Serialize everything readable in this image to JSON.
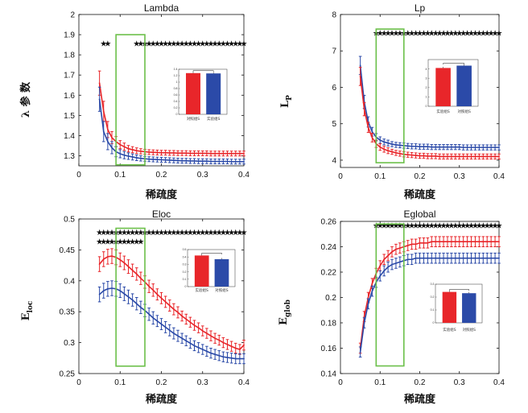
{
  "colors": {
    "group_a": "#e8262a",
    "group_b": "#2b4aa8",
    "highlight_box": "#6cc04a",
    "star_black": "#111111",
    "star_purple": "#9b59d0"
  },
  "chart_data": [
    {
      "type": "line",
      "title": "Lambda",
      "xlabel": "稀疏度",
      "ylabel": "λ 参 数",
      "xlim": [
        0,
        0.4
      ],
      "ylim": [
        1.25,
        2
      ],
      "xticks": [
        "0",
        "0.1",
        "0.2",
        "0.3",
        "0.4"
      ],
      "yticks": [
        "1.3",
        "1.4",
        "1.5",
        "1.6",
        "1.7",
        "1.8",
        "1.9",
        "2"
      ],
      "grid": false,
      "x": [
        0.05,
        0.06,
        0.07,
        0.08,
        0.09,
        0.1,
        0.11,
        0.12,
        0.13,
        0.14,
        0.15,
        0.16,
        0.17,
        0.18,
        0.19,
        0.2,
        0.21,
        0.22,
        0.23,
        0.24,
        0.25,
        0.26,
        0.27,
        0.28,
        0.29,
        0.3,
        0.31,
        0.32,
        0.33,
        0.34,
        0.35,
        0.36,
        0.37,
        0.38,
        0.39,
        0.4
      ],
      "series": [
        {
          "color": "red",
          "values": [
            1.66,
            1.52,
            1.43,
            1.39,
            1.37,
            1.355,
            1.345,
            1.335,
            1.33,
            1.325,
            1.322,
            1.32,
            1.318,
            1.317,
            1.316,
            1.315,
            1.315,
            1.314,
            1.314,
            1.313,
            1.313,
            1.313,
            1.312,
            1.312,
            1.312,
            1.312,
            1.312,
            1.311,
            1.311,
            1.311,
            1.311,
            1.311,
            1.311,
            1.311,
            1.311,
            1.311
          ]
        },
        {
          "color": "blue",
          "values": [
            1.58,
            1.42,
            1.37,
            1.34,
            1.32,
            1.31,
            1.303,
            1.298,
            1.294,
            1.29,
            1.287,
            1.285,
            1.283,
            1.282,
            1.281,
            1.28,
            1.279,
            1.278,
            1.277,
            1.276,
            1.275,
            1.275,
            1.274,
            1.274,
            1.273,
            1.273,
            1.273,
            1.272,
            1.272,
            1.272,
            1.272,
            1.272,
            1.271,
            1.271,
            1.271,
            1.271
          ]
        }
      ],
      "error": [
        0.06,
        0.05,
        0.04,
        0.03,
        0.025,
        0.02,
        0.018,
        0.016,
        0.015,
        0.014,
        0.013,
        0.012,
        0.012,
        0.012,
        0.012,
        0.012,
        0.012,
        0.012,
        0.012,
        0.012,
        0.012,
        0.012,
        0.012,
        0.012,
        0.012,
        0.012,
        0.012,
        0.012,
        0.012,
        0.012,
        0.012,
        0.012,
        0.012,
        0.012,
        0.012,
        0.012
      ],
      "significance": [
        {
          "y": 1.855,
          "color": "black",
          "x": [
            0.06,
            0.07,
            0.14,
            0.15,
            0.16,
            0.17,
            0.18,
            0.19,
            0.2,
            0.21,
            0.22,
            0.23,
            0.24,
            0.25,
            0.26,
            0.27,
            0.28,
            0.29,
            0.3,
            0.31,
            0.32,
            0.33,
            0.34,
            0.35,
            0.36,
            0.37,
            0.38,
            0.39,
            0.4
          ]
        }
      ],
      "highlight": {
        "x": [
          0.09,
          0.16
        ],
        "y": [
          1.255,
          1.9
        ]
      },
      "inset": {
        "labels": [
          "对照组S",
          "实验组S"
        ],
        "colors": [
          "red",
          "blue"
        ],
        "values": [
          1.28,
          1.27
        ],
        "ylim": [
          0,
          1.4
        ],
        "yticks": [
          "0",
          "0.2",
          "0.4",
          "0.6",
          "0.8",
          "1",
          "1.2",
          "1.4"
        ]
      }
    },
    {
      "type": "line",
      "title": "Lp",
      "xlabel": "稀疏度",
      "ylabel": "L",
      "ylabel_sub": "P",
      "xlim": [
        0,
        0.4
      ],
      "ylim": [
        3.8,
        8
      ],
      "xticks": [
        "0",
        "0.1",
        "0.2",
        "0.3",
        "0.4"
      ],
      "yticks": [
        "4",
        "5",
        "6",
        "7",
        "8"
      ],
      "grid": false,
      "x": [
        0.05,
        0.06,
        0.07,
        0.08,
        0.09,
        0.1,
        0.11,
        0.12,
        0.13,
        0.14,
        0.15,
        0.16,
        0.17,
        0.18,
        0.19,
        0.2,
        0.21,
        0.22,
        0.23,
        0.24,
        0.25,
        0.26,
        0.27,
        0.28,
        0.29,
        0.3,
        0.31,
        0.32,
        0.33,
        0.34,
        0.35,
        0.36,
        0.37,
        0.38,
        0.39,
        0.4
      ],
      "series": [
        {
          "color": "blue",
          "values": [
            6.6,
            5.6,
            5.05,
            4.78,
            4.63,
            4.55,
            4.5,
            4.47,
            4.44,
            4.42,
            4.41,
            4.4,
            4.39,
            4.38,
            4.38,
            4.37,
            4.37,
            4.37,
            4.36,
            4.36,
            4.36,
            4.36,
            4.36,
            4.36,
            4.36,
            4.36,
            4.35,
            4.35,
            4.35,
            4.35,
            4.35,
            4.35,
            4.35,
            4.35,
            4.35,
            4.35
          ]
        },
        {
          "color": "red",
          "values": [
            6.3,
            5.4,
            4.9,
            4.62,
            4.45,
            4.36,
            4.3,
            4.26,
            4.23,
            4.2,
            4.18,
            4.16,
            4.15,
            4.14,
            4.13,
            4.12,
            4.12,
            4.11,
            4.11,
            4.11,
            4.1,
            4.1,
            4.1,
            4.1,
            4.1,
            4.1,
            4.1,
            4.1,
            4.1,
            4.1,
            4.1,
            4.1,
            4.1,
            4.1,
            4.1,
            4.1
          ]
        }
      ],
      "error": [
        0.25,
        0.18,
        0.14,
        0.12,
        0.1,
        0.09,
        0.08,
        0.08,
        0.07,
        0.07,
        0.07,
        0.07,
        0.07,
        0.07,
        0.07,
        0.07,
        0.07,
        0.07,
        0.07,
        0.07,
        0.07,
        0.07,
        0.07,
        0.07,
        0.07,
        0.07,
        0.07,
        0.07,
        0.07,
        0.07,
        0.07,
        0.07,
        0.07,
        0.07,
        0.07,
        0.07
      ],
      "significance": [
        {
          "y": 7.48,
          "color": "black",
          "x": [
            0.09,
            0.1,
            0.11,
            0.12,
            0.13,
            0.14,
            0.15,
            0.16,
            0.17,
            0.18,
            0.19,
            0.2,
            0.21,
            0.22,
            0.23,
            0.24,
            0.25,
            0.26,
            0.27,
            0.28,
            0.29,
            0.3,
            0.31,
            0.32,
            0.33,
            0.34,
            0.35,
            0.36,
            0.37,
            0.38,
            0.39,
            0.4
          ]
        }
      ],
      "highlight": {
        "x": [
          0.09,
          0.16
        ],
        "y": [
          3.93,
          7.6
        ]
      },
      "inset": {
        "labels": [
          "实验组S",
          "对照组S"
        ],
        "colors": [
          "red",
          "blue"
        ],
        "values": [
          4.1,
          4.35
        ],
        "ylim": [
          0,
          5
        ],
        "yticks": [
          "0",
          "1",
          "2",
          "3",
          "4"
        ]
      }
    },
    {
      "type": "line",
      "title": "Eloc",
      "xlabel": "稀疏度",
      "ylabel": "E",
      "ylabel_sub": "loc",
      "xlim": [
        0,
        0.4
      ],
      "ylim": [
        0.25,
        0.5
      ],
      "xticks": [
        "0",
        "0.1",
        "0.2",
        "0.3",
        "0.4"
      ],
      "yticks": [
        "0.25",
        "0.3",
        "0.35",
        "0.4",
        "0.45",
        "0.5"
      ],
      "grid": false,
      "x": [
        0.05,
        0.06,
        0.07,
        0.08,
        0.09,
        0.1,
        0.11,
        0.12,
        0.13,
        0.14,
        0.15,
        0.16,
        0.17,
        0.18,
        0.19,
        0.2,
        0.21,
        0.22,
        0.23,
        0.24,
        0.25,
        0.26,
        0.27,
        0.28,
        0.29,
        0.3,
        0.31,
        0.32,
        0.33,
        0.34,
        0.35,
        0.36,
        0.37,
        0.38,
        0.39,
        0.4
      ],
      "series": [
        {
          "color": "red",
          "values": [
            0.427,
            0.435,
            0.439,
            0.44,
            0.438,
            0.434,
            0.429,
            0.423,
            0.417,
            0.411,
            0.404,
            0.398,
            0.391,
            0.385,
            0.378,
            0.372,
            0.366,
            0.36,
            0.354,
            0.349,
            0.343,
            0.338,
            0.333,
            0.328,
            0.324,
            0.319,
            0.315,
            0.311,
            0.307,
            0.304,
            0.3,
            0.297,
            0.294,
            0.291,
            0.289,
            0.296
          ]
        },
        {
          "color": "blue",
          "values": [
            0.378,
            0.384,
            0.387,
            0.388,
            0.387,
            0.384,
            0.379,
            0.374,
            0.369,
            0.363,
            0.357,
            0.352,
            0.346,
            0.34,
            0.335,
            0.33,
            0.325,
            0.32,
            0.315,
            0.311,
            0.307,
            0.303,
            0.299,
            0.295,
            0.292,
            0.289,
            0.286,
            0.283,
            0.281,
            0.279,
            0.277,
            0.276,
            0.275,
            0.274,
            0.274,
            0.274
          ]
        }
      ],
      "error": [
        0.012,
        0.012,
        0.012,
        0.012,
        0.012,
        0.011,
        0.011,
        0.011,
        0.01,
        0.01,
        0.01,
        0.01,
        0.01,
        0.01,
        0.009,
        0.009,
        0.009,
        0.009,
        0.009,
        0.009,
        0.008,
        0.008,
        0.008,
        0.008,
        0.008,
        0.008,
        0.008,
        0.008,
        0.008,
        0.008,
        0.008,
        0.008,
        0.008,
        0.008,
        0.008,
        0.008
      ],
      "significance": [
        {
          "y": 0.478,
          "color": "black",
          "x": [
            0.05,
            0.06,
            0.07,
            0.08,
            0.09,
            0.1,
            0.11,
            0.12,
            0.13,
            0.14,
            0.15,
            0.16,
            0.17,
            0.18,
            0.19,
            0.2,
            0.21,
            0.22,
            0.23,
            0.24,
            0.25,
            0.26,
            0.27,
            0.28,
            0.29,
            0.3,
            0.31,
            0.32,
            0.33,
            0.34,
            0.35,
            0.36,
            0.37,
            0.38,
            0.39,
            0.4
          ]
        },
        {
          "y": 0.463,
          "color": "purple",
          "x": [
            0.05,
            0.06,
            0.07,
            0.08,
            0.09,
            0.1,
            0.11,
            0.12,
            0.13,
            0.14,
            0.15
          ]
        }
      ],
      "highlight": {
        "x": [
          0.09,
          0.16
        ],
        "y": [
          0.262,
          0.485
        ]
      },
      "inset": {
        "labels": [
          "实验组S",
          "对照组S"
        ],
        "colors": [
          "red",
          "blue"
        ],
        "values": [
          0.42,
          0.37
        ],
        "ylim": [
          0,
          0.5
        ],
        "yticks": [
          "0",
          "0.1",
          "0.2",
          "0.3",
          "0.4",
          "0.5"
        ]
      }
    },
    {
      "type": "line",
      "title": "Eglobal",
      "xlabel": "稀疏度",
      "ylabel": "E",
      "ylabel_sub": "glob",
      "xlim": [
        0,
        0.4
      ],
      "ylim": [
        0.14,
        0.26
      ],
      "xticks": [
        "0",
        "0.1",
        "0.2",
        "0.3",
        "0.4"
      ],
      "yticks": [
        "0.14",
        "0.16",
        "0.18",
        "0.2",
        "0.22",
        "0.24",
        "0.26"
      ],
      "grid": false,
      "x": [
        0.05,
        0.06,
        0.07,
        0.08,
        0.09,
        0.1,
        0.11,
        0.12,
        0.13,
        0.14,
        0.15,
        0.16,
        0.17,
        0.18,
        0.19,
        0.2,
        0.21,
        0.22,
        0.23,
        0.24,
        0.25,
        0.26,
        0.27,
        0.28,
        0.29,
        0.3,
        0.31,
        0.32,
        0.33,
        0.34,
        0.35,
        0.36,
        0.37,
        0.38,
        0.39,
        0.4
      ],
      "series": [
        {
          "color": "red",
          "values": [
            0.16,
            0.185,
            0.2,
            0.211,
            0.219,
            0.225,
            0.23,
            0.233,
            0.236,
            0.238,
            0.239,
            0.24,
            0.241,
            0.242,
            0.242,
            0.243,
            0.243,
            0.243,
            0.244,
            0.244,
            0.244,
            0.244,
            0.244,
            0.244,
            0.244,
            0.244,
            0.244,
            0.244,
            0.244,
            0.244,
            0.244,
            0.244,
            0.244,
            0.244,
            0.244,
            0.244
          ]
        },
        {
          "color": "blue",
          "values": [
            0.157,
            0.18,
            0.195,
            0.205,
            0.212,
            0.217,
            0.221,
            0.224,
            0.226,
            0.227,
            0.228,
            0.229,
            0.23,
            0.23,
            0.231,
            0.231,
            0.231,
            0.231,
            0.231,
            0.231,
            0.231,
            0.231,
            0.231,
            0.231,
            0.231,
            0.231,
            0.231,
            0.231,
            0.231,
            0.231,
            0.231,
            0.231,
            0.231,
            0.231,
            0.231,
            0.231
          ]
        }
      ],
      "error": [
        0.004,
        0.004,
        0.004,
        0.004,
        0.004,
        0.004,
        0.004,
        0.004,
        0.004,
        0.004,
        0.004,
        0.004,
        0.004,
        0.004,
        0.004,
        0.004,
        0.004,
        0.004,
        0.004,
        0.004,
        0.004,
        0.004,
        0.004,
        0.004,
        0.004,
        0.004,
        0.004,
        0.004,
        0.004,
        0.004,
        0.004,
        0.004,
        0.004,
        0.004,
        0.004,
        0.004
      ],
      "significance": [
        {
          "y": 0.2565,
          "color": "black",
          "x": [
            0.09,
            0.1,
            0.11,
            0.12,
            0.13,
            0.14,
            0.15,
            0.16,
            0.17,
            0.18,
            0.19,
            0.2,
            0.21,
            0.22,
            0.23,
            0.24,
            0.25,
            0.26,
            0.27,
            0.28,
            0.29,
            0.3,
            0.31,
            0.32,
            0.33,
            0.34,
            0.35,
            0.36,
            0.37,
            0.38,
            0.39,
            0.4
          ]
        }
      ],
      "highlight": {
        "x": [
          0.09,
          0.16
        ],
        "y": [
          0.146,
          0.258
        ]
      },
      "inset": {
        "labels": [
          "实验组S",
          "对照组S"
        ],
        "colors": [
          "red",
          "blue"
        ],
        "values": [
          0.24,
          0.23
        ],
        "ylim": [
          0,
          0.3
        ],
        "yticks": [
          "0",
          "0.1",
          "0.2",
          "0.3"
        ]
      }
    }
  ]
}
